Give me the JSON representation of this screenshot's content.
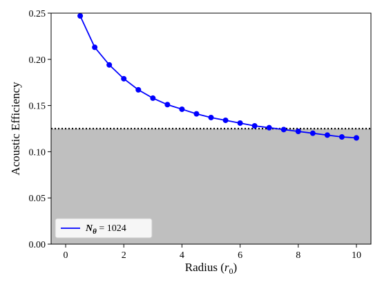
{
  "chart_data": {
    "type": "line",
    "title": "",
    "xlabel": {
      "prefix": "Radius (",
      "symbol": "r",
      "sub": "0",
      "suffix": ")"
    },
    "ylabel": "Acoustic Efficiency",
    "xlim": [
      -0.5,
      10.5
    ],
    "ylim": [
      0,
      0.25
    ],
    "xticks": [
      0,
      2,
      4,
      6,
      8,
      10
    ],
    "yticks": [
      0.0,
      0.05,
      0.1,
      0.15,
      0.2,
      0.25
    ],
    "xtick_labels": [
      "0",
      "2",
      "4",
      "6",
      "8",
      "10"
    ],
    "ytick_labels": [
      "0.00",
      "0.05",
      "0.10",
      "0.15",
      "0.20",
      "0.25"
    ],
    "grid": false,
    "threshold": {
      "y": 0.125,
      "style": "dotted",
      "shade_below": true
    },
    "legend": {
      "placement": "lower-left",
      "symbol": "N",
      "sub": "θ",
      "text": " = 1024"
    },
    "series": [
      {
        "name": "N_θ = 1024",
        "color": "#0000ff",
        "x": [
          0.5,
          1.0,
          1.5,
          2.0,
          2.5,
          3.0,
          3.5,
          4.0,
          4.5,
          5.0,
          5.5,
          6.0,
          6.5,
          7.0,
          7.5,
          8.0,
          8.5,
          9.0,
          9.5,
          10.0
        ],
        "y": [
          0.247,
          0.213,
          0.194,
          0.179,
          0.167,
          0.158,
          0.151,
          0.146,
          0.141,
          0.137,
          0.134,
          0.131,
          0.128,
          0.126,
          0.124,
          0.122,
          0.12,
          0.118,
          0.116,
          0.115
        ]
      }
    ]
  },
  "colors": {
    "shade": "#bfbfbf",
    "threshold": "#000000",
    "axes": "#000000",
    "series": "#0000ff"
  }
}
